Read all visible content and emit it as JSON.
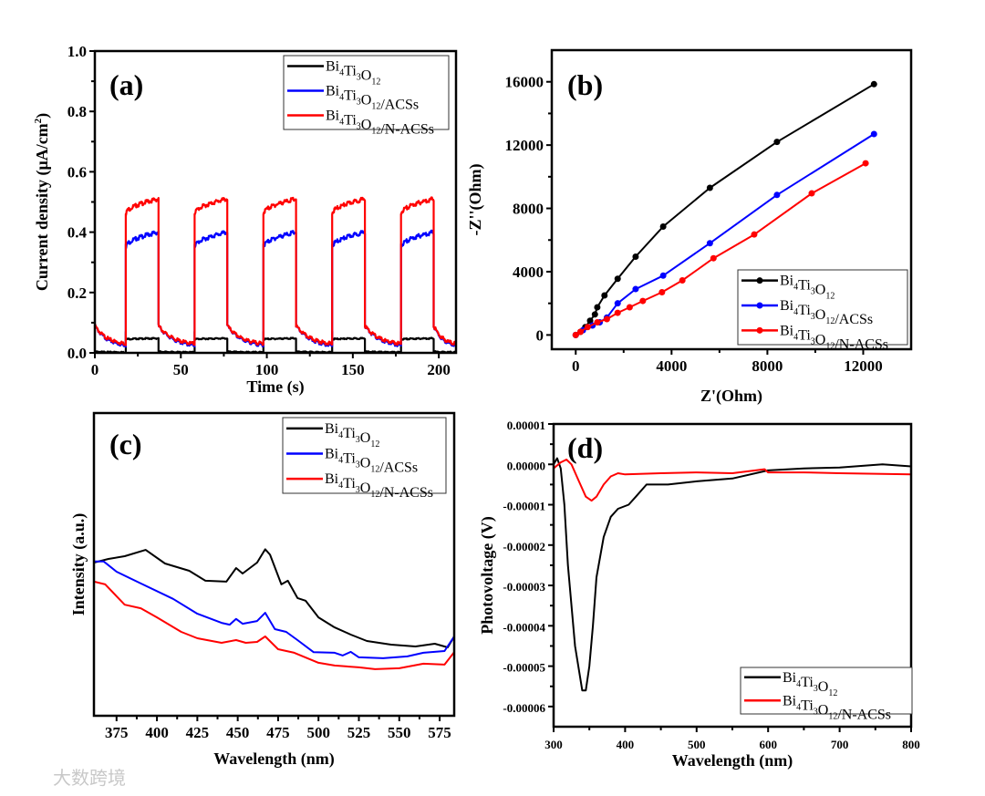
{
  "watermark": "大数跨境",
  "chart_data": [
    {
      "panel_label": "(a)",
      "type": "line",
      "xlabel": "Time (s)",
      "ylabel": "Current density (μA/cm2)",
      "xlim": [
        0,
        210
      ],
      "ylim": [
        0,
        1.0
      ],
      "xticks": [
        0,
        50,
        100,
        150,
        200
      ],
      "yticks": [
        0.0,
        0.2,
        0.4,
        0.6,
        0.8,
        1.0
      ],
      "ytick_labels": [
        "0.0",
        "0.2",
        "0.4",
        "0.6",
        "0.8",
        "1.0"
      ],
      "legend_position": "top-right",
      "light_on_intervals": [
        [
          18,
          37
        ],
        [
          58,
          77
        ],
        [
          98,
          117
        ],
        [
          138,
          157
        ],
        [
          178,
          197
        ]
      ],
      "series": [
        {
          "name": "Bi4Ti3O12",
          "color": "#000000",
          "on_start": 0.045,
          "on_end": 0.048,
          "spike": 0.07,
          "off_start": 0.004,
          "off_end": 0.002
        },
        {
          "name": "Bi4Ti3O12/ACSs",
          "color": "#0000ff",
          "on_start": 0.35,
          "on_end": 0.4,
          "spike": 0.36,
          "off_start": 0.09,
          "off_end": 0.02
        },
        {
          "name": "Bi4Ti3O12/N-ACSs",
          "color": "#ff0000",
          "on_start": 0.46,
          "on_end": 0.51,
          "spike": 0.46,
          "off_start": 0.09,
          "off_end": 0.025
        }
      ]
    },
    {
      "panel_label": "(b)",
      "type": "line",
      "xlabel": "Z'(Ohm)",
      "ylabel": "-Z''(Ohm)",
      "xlim": [
        -1000,
        14000
      ],
      "ylim": [
        -900,
        18000
      ],
      "xticks": [
        0,
        4000,
        8000,
        12000
      ],
      "yticks": [
        0,
        4000,
        8000,
        12000,
        16000
      ],
      "legend_position": "bottom-right",
      "markers": true,
      "series": [
        {
          "name": "Bi4Ti3O12",
          "color": "#000000",
          "x": [
            0,
            200,
            400,
            600,
            800,
            900,
            1200,
            1750,
            2500,
            3650,
            5600,
            8400,
            12450
          ],
          "y": [
            0,
            200,
            500,
            900,
            1300,
            1750,
            2500,
            3550,
            4950,
            6850,
            9300,
            12200,
            15850
          ]
        },
        {
          "name": "Bi4Ti3O12/ACSs",
          "color": "#0000ff",
          "x": [
            0,
            300,
            700,
            1000,
            1300,
            1750,
            2500,
            3650,
            5600,
            8400,
            12450
          ],
          "y": [
            0,
            300,
            600,
            800,
            1100,
            2000,
            2900,
            3750,
            5800,
            8850,
            12700
          ]
        },
        {
          "name": "Bi4Ti3O12/N-ACSs",
          "color": "#ff0000",
          "x": [
            0,
            200,
            500,
            900,
            1300,
            1750,
            2250,
            2800,
            3600,
            4450,
            5750,
            7450,
            9850,
            12100
          ],
          "y": [
            0,
            200,
            500,
            800,
            1000,
            1400,
            1750,
            2150,
            2700,
            3450,
            4850,
            6350,
            8950,
            10850
          ]
        }
      ]
    },
    {
      "panel_label": "(c)",
      "type": "line",
      "xlabel": "Wavelength (nm)",
      "ylabel": "Intensity (a.u.)",
      "xlim": [
        361,
        584
      ],
      "ylim": [
        0,
        100
      ],
      "xticks": [
        375,
        400,
        425,
        450,
        475,
        500,
        525,
        550,
        575
      ],
      "yticks": [],
      "legend_position": "top-right",
      "series": [
        {
          "name": "Bi4Ti3O12",
          "color": "#000000",
          "x": [
            361,
            370,
            380,
            393,
            405,
            420,
            430,
            443,
            449,
            453,
            462,
            467,
            470,
            477,
            481,
            487,
            492,
            500,
            510,
            520,
            530,
            545,
            560,
            572,
            580,
            584
          ],
          "y": [
            50.6,
            51.8,
            52.7,
            54.8,
            50.3,
            47.9,
            44.6,
            44.3,
            48.8,
            47,
            50.6,
            55,
            53.2,
            43.4,
            44.6,
            38.9,
            38,
            32.5,
            29.2,
            26.8,
            24.7,
            23.5,
            22.9,
            23.8,
            22.6,
            26.2
          ]
        },
        {
          "name": "Bi4Ti3O12/ACSs",
          "color": "#0000ff",
          "x": [
            361,
            367,
            375,
            390,
            410,
            425,
            440,
            445,
            449,
            453,
            462,
            467,
            473,
            480,
            487,
            497,
            510,
            515,
            520,
            525,
            540,
            555,
            565,
            578,
            584
          ],
          "y": [
            51,
            51,
            47.6,
            43.7,
            38.6,
            33.7,
            30.7,
            30.1,
            32,
            30.4,
            31.3,
            34,
            28.6,
            27.7,
            25,
            21,
            20.8,
            19.9,
            21.1,
            19.3,
            19,
            19.6,
            20.8,
            21.4,
            26.2
          ]
        },
        {
          "name": "Bi4Ti3O12/N-ACSs",
          "color": "#ff0000",
          "x": [
            361,
            368,
            375,
            380,
            390,
            400,
            415,
            425,
            440,
            449,
            455,
            462,
            467,
            475,
            485,
            500,
            510,
            525,
            535,
            550,
            565,
            578,
            584
          ],
          "y": [
            44.3,
            43.4,
            39.5,
            36.7,
            35.5,
            32.5,
            27.7,
            25.6,
            24.1,
            25,
            24.1,
            24.4,
            26.2,
            22,
            20.8,
            17.5,
            16.6,
            16,
            15.4,
            15.7,
            17.2,
            16.9,
            21
          ]
        }
      ]
    },
    {
      "panel_label": "(d)",
      "type": "line",
      "xlabel": "Wavelength (nm)",
      "ylabel": "Photovoltage (V)",
      "xlim": [
        300,
        800
      ],
      "ylim": [
        -6.5e-05,
        1e-05
      ],
      "y_unit_scale": 1e-05,
      "xticks": [
        300,
        400,
        500,
        600,
        700,
        800
      ],
      "yticks": [
        1e-05,
        0,
        -1e-05,
        -2e-05,
        -3e-05,
        -4e-05,
        -5e-05,
        -6e-05
      ],
      "ytick_labels": [
        "0.00001",
        "0.00000",
        "-0.00001",
        "-0.00002",
        "-0.00003",
        "-0.00004",
        "-0.00005",
        "-0.00006"
      ],
      "legend_position": "bottom-right",
      "series": [
        {
          "name": "Bi4Ti3O12",
          "color": "#000000",
          "x": [
            300,
            305,
            310,
            315,
            320,
            330,
            340,
            345,
            350,
            355,
            360,
            370,
            380,
            390,
            405,
            415,
            430,
            460,
            500,
            550,
            600,
            650,
            700,
            760,
            800
          ],
          "y_scaled": [
            0,
            0.15,
            -0.1,
            -1,
            -2.5,
            -4.5,
            -5.6,
            -5.6,
            -5,
            -4,
            -2.8,
            -1.8,
            -1.3,
            -1.1,
            -1,
            -0.8,
            -0.5,
            -0.5,
            -0.42,
            -0.35,
            -0.15,
            -0.1,
            -0.08,
            0,
            -0.05
          ]
        },
        {
          "name": "Bi4Ti3O12/N-ACSs",
          "color": "#ff0000",
          "x": [
            300,
            310,
            318,
            325,
            335,
            345,
            353,
            360,
            370,
            380,
            390,
            400,
            450,
            500,
            550,
            595,
            600,
            650,
            700,
            800
          ],
          "y_scaled": [
            -0.1,
            0.05,
            0.12,
            0,
            -0.4,
            -0.8,
            -0.9,
            -0.8,
            -0.5,
            -0.3,
            -0.22,
            -0.25,
            -0.22,
            -0.2,
            -0.22,
            -0.12,
            -0.2,
            -0.2,
            -0.22,
            -0.25
          ]
        }
      ]
    }
  ]
}
